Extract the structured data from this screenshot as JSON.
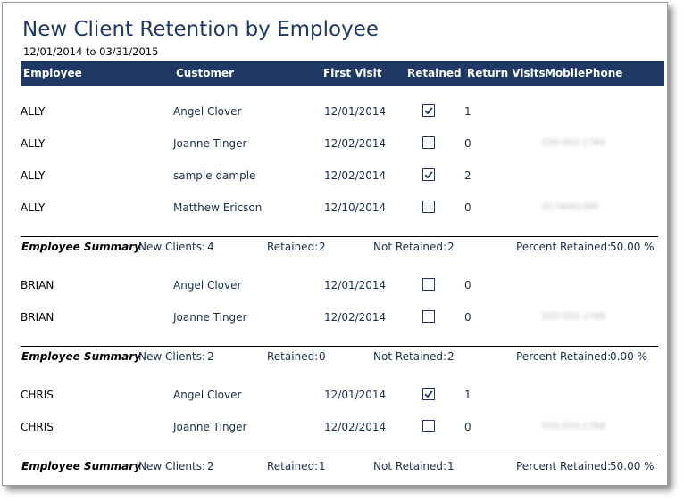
{
  "report": {
    "title": "New Client Retention by Employee",
    "date_range": "12/01/2014 to 03/31/2015"
  },
  "columns": {
    "employee": "Employee",
    "customer": "Customer",
    "first_visit": "First Visit",
    "retained": "Retained",
    "return_visits": "Return Visits",
    "mobile_phone": "MobilePhone"
  },
  "groups": [
    {
      "rows": [
        {
          "employee": "ALLY",
          "customer": "Angel Clover",
          "first_visit": "12/01/2014",
          "retained": true,
          "return_visits": "1",
          "phone": ""
        },
        {
          "employee": "ALLY",
          "customer": "Joanne Tinger",
          "first_visit": "12/02/2014",
          "retained": false,
          "return_visits": "0",
          "phone": "555-555-1784"
        },
        {
          "employee": "ALLY",
          "customer": "sample dample",
          "first_visit": "12/02/2014",
          "retained": true,
          "return_visits": "2",
          "phone": ""
        },
        {
          "employee": "ALLY",
          "customer": "Matthew Ericson",
          "first_visit": "12/10/2014",
          "retained": false,
          "return_visits": "0",
          "phone": "4174441365"
        }
      ],
      "summary": {
        "label": "Employee Summary",
        "new_clients_label": "New Clients:",
        "new_clients": "4",
        "retained_label": "Retained:",
        "retained": "2",
        "not_retained_label": "Not Retained:",
        "not_retained": "2",
        "percent_label": "Percent Retained:",
        "percent": "50.00 %"
      }
    },
    {
      "rows": [
        {
          "employee": "BRIAN",
          "customer": "Angel Clover",
          "first_visit": "12/01/2014",
          "retained": false,
          "return_visits": "0",
          "phone": ""
        },
        {
          "employee": "BRIAN",
          "customer": "Joanne Tinger",
          "first_visit": "12/02/2014",
          "retained": false,
          "return_visits": "0",
          "phone": "555-555-1784"
        }
      ],
      "summary": {
        "label": "Employee Summary",
        "new_clients_label": "New Clients:",
        "new_clients": "2",
        "retained_label": "Retained:",
        "retained": "0",
        "not_retained_label": "Not Retained:",
        "not_retained": "2",
        "percent_label": "Percent Retained:",
        "percent": "0.00 %"
      }
    },
    {
      "rows": [
        {
          "employee": "CHRIS",
          "customer": "Angel Clover",
          "first_visit": "12/01/2014",
          "retained": true,
          "return_visits": "1",
          "phone": ""
        },
        {
          "employee": "CHRIS",
          "customer": "Joanne Tinger",
          "first_visit": "12/02/2014",
          "retained": false,
          "return_visits": "0",
          "phone": "555-555-1784"
        }
      ],
      "summary": {
        "label": "Employee Summary",
        "new_clients_label": "New Clients:",
        "new_clients": "2",
        "retained_label": "Retained:",
        "retained": "1",
        "not_retained_label": "Not Retained:",
        "not_retained": "1",
        "percent_label": "Percent Retained:",
        "percent": "50.00 %"
      }
    }
  ]
}
